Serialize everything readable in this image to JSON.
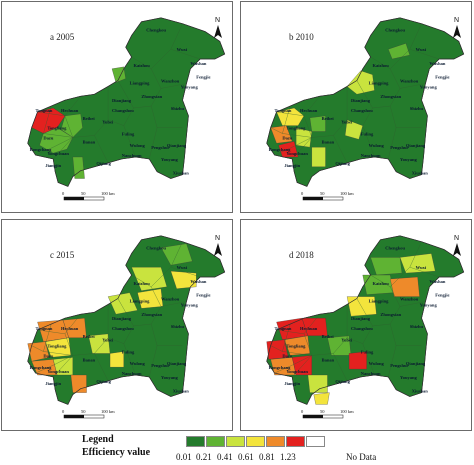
{
  "colors": {
    "c1": "#247b2c",
    "c2": "#5fb333",
    "c3": "#c9e33e",
    "c4": "#f3e43c",
    "c5": "#ee8a2a",
    "c6": "#e3211f",
    "nodata": "#ffffff"
  },
  "maps": [
    {
      "title": "a 2005",
      "labels": [
        "Chengkou",
        "Wuxi",
        "Kaizhou",
        "Wushan",
        "Fengjie",
        "Yunyang",
        "Wanzhou",
        "Liangping",
        "Tongnan",
        "Hechuan",
        "Dianjiang",
        "Zhongxian",
        "Changshou",
        "Shizhu",
        "Tongliang",
        "Beibei",
        "Yubei",
        "Fuling",
        "Dazu",
        "Rongchang",
        "Banan",
        "Yongchuan",
        "Wulong",
        "Pengshui",
        "Qianjiang",
        "Jiangjin",
        "Qijiang",
        "Nanchuan",
        "Youyang",
        "Xiushan"
      ]
    },
    {
      "title": "b 2010",
      "labels": [
        "Chengkou",
        "Wuxi",
        "Kaizhou",
        "Wushan",
        "Fengjie",
        "Yunyang",
        "Wanzhou",
        "Liangping",
        "Tongnan",
        "Hechuan",
        "Dianjiang",
        "Zhongxian",
        "Changshou",
        "Shizhu",
        "Tongliang",
        "Beibei",
        "Yubei",
        "Fuling",
        "Dazu",
        "Rongchang",
        "Banan",
        "Yongchuan",
        "Wulong",
        "Pengshui",
        "Qianjiang",
        "Jiangjin",
        "Qijiang",
        "Nanchuan",
        "Youyang",
        "Xiushan"
      ]
    },
    {
      "title": "c 2015",
      "labels": [
        "Chengkou",
        "Wuxi",
        "Kaizhou",
        "Wushan",
        "Fengjie",
        "Yunyang",
        "Wanzhou",
        "Liangping",
        "Tongnan",
        "Hechuan",
        "Dianjiang",
        "Zhongxian",
        "Changshou",
        "Shizhu",
        "Tongliang",
        "Beibei",
        "Yubei",
        "Fuling",
        "Dazu",
        "Rongchang",
        "Banan",
        "Yongchuan",
        "Wulong",
        "Pengshui",
        "Qianjiang",
        "Jiangjin",
        "Qijiang",
        "Nanchuan",
        "Youyang",
        "Xiushan"
      ]
    },
    {
      "title": "d 2018",
      "labels": [
        "Chengkou",
        "Wuxi",
        "Kaizhou",
        "Wushan",
        "Fengjie",
        "Yunyang",
        "Wanzhou",
        "Liangping",
        "Tongnan",
        "Hechuan",
        "Dianjiang",
        "Zhongxian",
        "Changshou",
        "Shizhu",
        "Tongliang",
        "Beibei",
        "Yubei",
        "Fuling",
        "Dazu",
        "Rongchang",
        "Banan",
        "Yongchuan",
        "Wulong",
        "Pengshui",
        "Qianjiang",
        "Jiangjin",
        "Qijiang",
        "Nanchuan",
        "Youyang",
        "Xiushan"
      ]
    }
  ],
  "north": "N",
  "scale": {
    "t0": "0",
    "t1": "50",
    "t2": "100 km"
  },
  "legend": {
    "title": "Legend",
    "subtitle": "Efficiency value",
    "ticks": [
      "0.01",
      "0.21",
      "0.41",
      "0.61",
      "0.81",
      "1.23"
    ],
    "nodata": "No Data"
  }
}
